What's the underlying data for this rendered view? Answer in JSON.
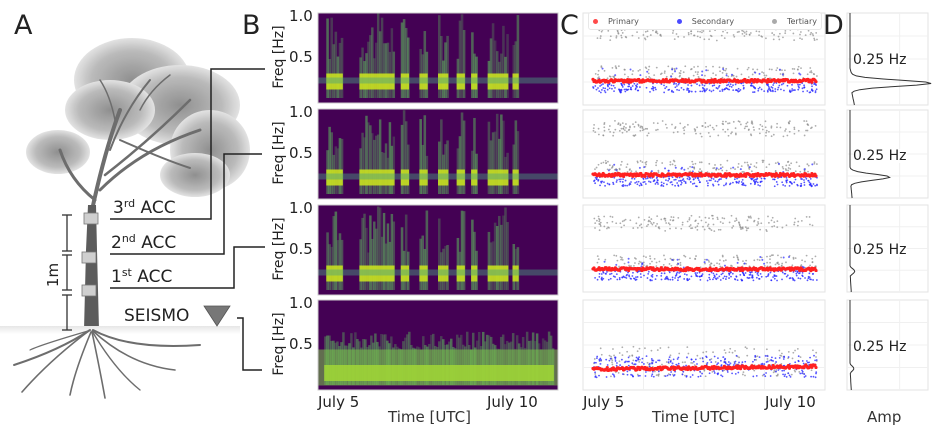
{
  "panels": {
    "a": {
      "letter": "A",
      "sensors": [
        {
          "base": "3",
          "sup": "rd",
          "name": "ACC"
        },
        {
          "base": "2",
          "sup": "nd",
          "name": "ACC"
        },
        {
          "base": "1",
          "sup": "st",
          "name": "ACC"
        }
      ],
      "seismo_label": "SEISMO",
      "scale_label": "1m"
    },
    "b": {
      "letter": "B"
    },
    "c": {
      "letter": "C"
    },
    "d": {
      "letter": "D"
    }
  },
  "colors": {
    "primary": "#ff2020",
    "secondary": "#2a2aff",
    "tertiary": "#8a8a8a",
    "spectro_low": "#440154",
    "spectro_high": "#c8e020"
  },
  "chart_data": [
    {
      "type": "heatmap",
      "panel": "B",
      "title": "",
      "ylabel": "Freq [Hz]",
      "xlabel": "Time [UTC]",
      "xticks": [
        "July 5",
        "July 10"
      ],
      "yticks": [
        "1.0",
        "0.5"
      ],
      "ylim": [
        0,
        1.0
      ],
      "subplots": [
        {
          "sensor": "3rd ACC",
          "dominant_freq_hz": 0.25,
          "active_windows_days": [
            [
              4.9,
              5.3
            ],
            [
              5.7,
              6.55
            ],
            [
              6.7,
              6.9
            ],
            [
              7.15,
              7.35
            ],
            [
              7.6,
              7.85
            ],
            [
              8.05,
              8.25
            ],
            [
              8.4,
              8.55
            ],
            [
              8.8,
              9.3
            ],
            [
              9.4,
              9.55
            ]
          ]
        },
        {
          "sensor": "2nd ACC",
          "dominant_freq_hz": 0.25,
          "active_windows_days": [
            [
              4.9,
              5.3
            ],
            [
              5.7,
              6.55
            ],
            [
              6.7,
              6.9
            ],
            [
              7.15,
              7.35
            ],
            [
              7.6,
              7.85
            ],
            [
              8.05,
              8.25
            ],
            [
              8.4,
              8.55
            ],
            [
              8.8,
              9.3
            ],
            [
              9.4,
              9.55
            ]
          ]
        },
        {
          "sensor": "1st ACC",
          "dominant_freq_hz": 0.25,
          "active_windows_days": [
            [
              4.9,
              5.3
            ],
            [
              5.7,
              6.55
            ],
            [
              6.7,
              6.9
            ],
            [
              7.15,
              7.35
            ],
            [
              7.6,
              7.85
            ],
            [
              8.05,
              8.25
            ],
            [
              8.4,
              8.55
            ],
            [
              8.8,
              9.3
            ],
            [
              9.4,
              9.55
            ]
          ]
        },
        {
          "sensor": "SEISMO",
          "dominant_freq_hz": 0.2,
          "active_windows_days": [
            [
              4.85,
              10.4
            ]
          ]
        }
      ]
    },
    {
      "type": "scatter",
      "panel": "C",
      "xlabel": "Time [UTC]",
      "xticks": [
        "July 5",
        "July 10"
      ],
      "legend": [
        "Primary",
        "Secondary",
        "Tertiary"
      ],
      "legend_position": "top",
      "subplots": [
        {
          "sensor": "3rd ACC",
          "bands_hz": {
            "Primary": 0.25,
            "Secondary": 0.18,
            "Tertiary": [
              0.32,
              0.75
            ]
          }
        },
        {
          "sensor": "2nd ACC",
          "bands_hz": {
            "Primary": 0.25,
            "Secondary": 0.18,
            "Tertiary": [
              0.32,
              0.75
            ]
          }
        },
        {
          "sensor": "1st ACC",
          "bands_hz": {
            "Primary": 0.25,
            "Secondary": 0.18,
            "Tertiary": [
              0.32,
              0.75
            ]
          }
        },
        {
          "sensor": "SEISMO",
          "bands_hz": {
            "Primary": 0.22,
            "Secondary": 0.25,
            "Tertiary": 0.3
          }
        }
      ]
    },
    {
      "type": "line",
      "panel": "D",
      "xlabel": "Amp",
      "subplots": [
        {
          "peak_label": "0.25 Hz",
          "peak_freq_hz": 0.25,
          "relative_amp": 1.0
        },
        {
          "peak_label": "0.25 Hz",
          "peak_freq_hz": 0.25,
          "relative_amp": 0.5
        },
        {
          "peak_label": "0.25 Hz",
          "peak_freq_hz": 0.25,
          "relative_amp": 0.08
        },
        {
          "peak_label": "0.25 Hz",
          "peak_freq_hz": 0.25,
          "relative_amp": 0.07
        }
      ]
    }
  ]
}
